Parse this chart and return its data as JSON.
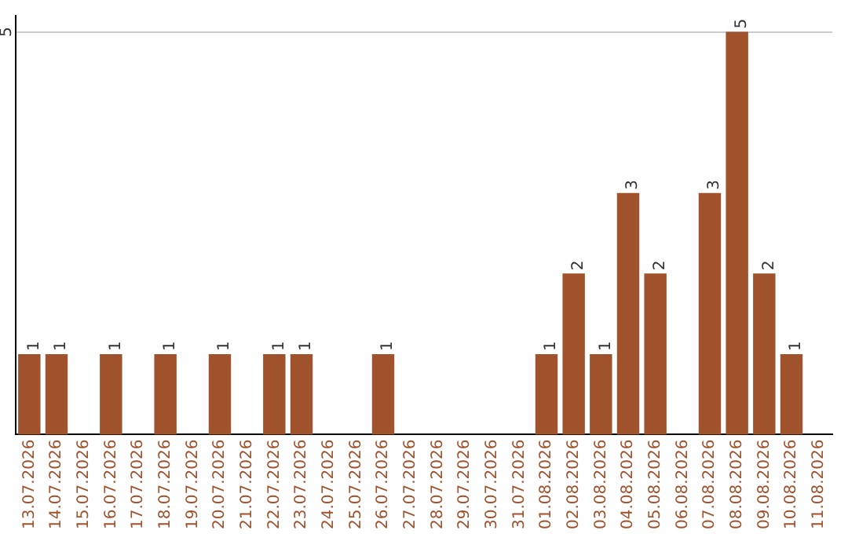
{
  "chart_data": {
    "type": "bar",
    "categories": [
      "13.07.2026",
      "14.07.2026",
      "15.07.2026",
      "16.07.2026",
      "17.07.2026",
      "18.07.2026",
      "19.07.2026",
      "20.07.2026",
      "21.07.2026",
      "22.07.2026",
      "23.07.2026",
      "24.07.2026",
      "25.07.2026",
      "26.07.2026",
      "27.07.2026",
      "28.07.2026",
      "29.07.2026",
      "30.07.2026",
      "31.07.2026",
      "01.08.2026",
      "02.08.2026",
      "03.08.2026",
      "04.08.2026",
      "05.08.2026",
      "06.08.2026",
      "07.08.2026",
      "08.08.2026",
      "09.08.2026",
      "10.08.2026",
      "11.08.2026"
    ],
    "values": [
      1,
      1,
      0,
      1,
      0,
      1,
      0,
      1,
      0,
      1,
      1,
      0,
      0,
      1,
      0,
      0,
      0,
      0,
      0,
      1,
      2,
      1,
      3,
      2,
      0,
      3,
      5,
      2,
      1,
      0
    ],
    "value_labels": [
      "1",
      "1",
      null,
      "1",
      null,
      "1",
      null,
      "1",
      null,
      "1",
      "1",
      null,
      null,
      "1",
      null,
      null,
      null,
      null,
      null,
      "1",
      "2",
      "1",
      "3",
      "2",
      null,
      "3",
      "5",
      "2",
      "1",
      null
    ],
    "color": "#a0522d",
    "ylim": [
      0,
      5.2
    ],
    "yticks": [
      5
    ],
    "grid": "y",
    "legend": false
  }
}
